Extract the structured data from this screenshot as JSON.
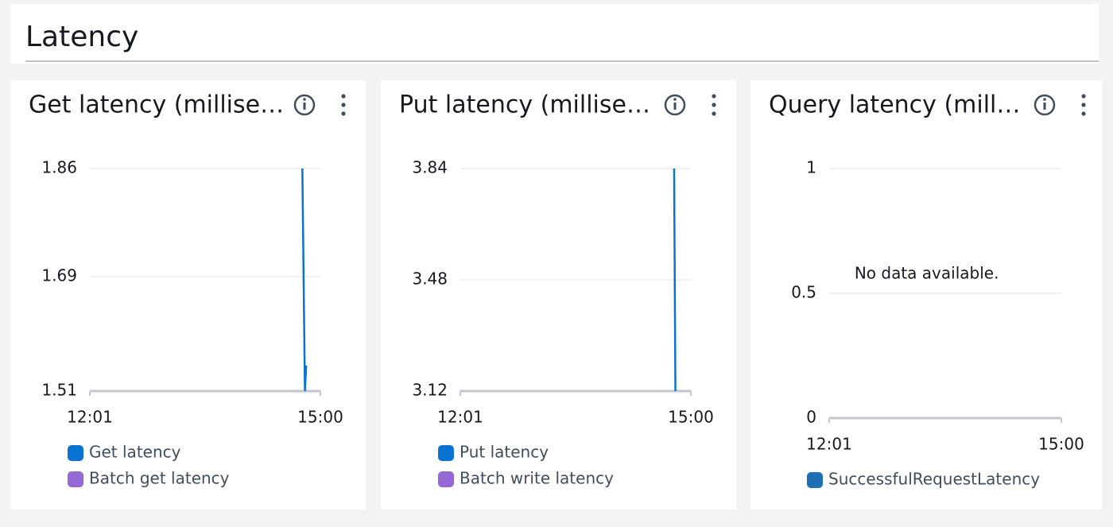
{
  "header": {
    "title": "Latency"
  },
  "chart_data": [
    {
      "type": "line",
      "title": "Get latency (millise…",
      "x": [
        "14:46",
        "14:48",
        "14:49"
      ],
      "series": [
        {
          "name": "Get latency",
          "color": "#0972d3",
          "values": [
            1.86,
            1.51,
            1.55
          ]
        },
        {
          "name": "Batch get latency",
          "color": "#9469d6",
          "values": [
            null,
            null,
            null
          ]
        }
      ],
      "xlim": [
        "12:01",
        "15:00"
      ],
      "xticks": [
        "12:01",
        "15:00"
      ],
      "ylim": [
        1.51,
        1.86
      ],
      "yticks": [
        1.51,
        1.69,
        1.86
      ],
      "grid": true
    },
    {
      "type": "line",
      "title": "Put latency (millise…",
      "x": [
        "14:47",
        "14:48"
      ],
      "series": [
        {
          "name": "Put latency",
          "color": "#0972d3",
          "values": [
            3.84,
            3.12
          ]
        },
        {
          "name": "Batch write latency",
          "color": "#9469d6",
          "values": [
            null,
            null
          ]
        }
      ],
      "xlim": [
        "12:01",
        "15:00"
      ],
      "xticks": [
        "12:01",
        "15:00"
      ],
      "ylim": [
        3.12,
        3.84
      ],
      "yticks": [
        3.12,
        3.48,
        3.84
      ],
      "grid": true
    },
    {
      "type": "line",
      "title": "Query latency (mill…",
      "message": "No data available.",
      "x": [],
      "series": [
        {
          "name": "SuccessfulRequestLatency",
          "color": "#1f6fb5",
          "values": []
        }
      ],
      "xlim": [
        "12:01",
        "15:00"
      ],
      "xticks": [
        "12:01",
        "15:00"
      ],
      "ylim": [
        0,
        1
      ],
      "yticks": [
        0,
        0.5,
        1
      ],
      "grid": true
    }
  ]
}
